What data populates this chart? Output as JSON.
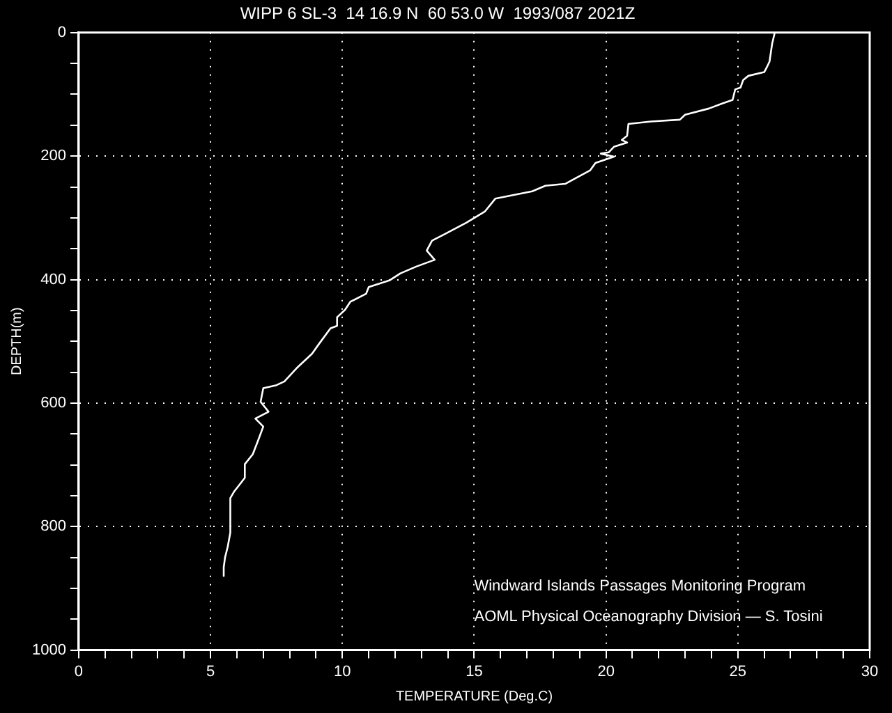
{
  "chart_data": {
    "type": "line",
    "title": "WIPP 6 SL-3  14 16.9 N  60 53.0 W  1993/087 2021Z",
    "xlabel": "TEMPERATURE (Deg.C)",
    "ylabel": "DEPTH(m)",
    "annotations": [
      "Windward Islands Passages Monitoring Program",
      "AOML Physical Oceanography Division — S. Tosini"
    ],
    "xlim": [
      0,
      30
    ],
    "ylim": [
      1000,
      0
    ],
    "xticks": [
      0,
      {
        "value": 1,
        "label": null
      },
      {
        "value": 2,
        "label": null
      },
      {
        "value": 3,
        "label": null
      },
      {
        "value": 4,
        "label": null
      },
      5,
      {
        "value": 6,
        "label": null
      },
      {
        "value": 7,
        "label": null
      },
      {
        "value": 8,
        "label": null
      },
      {
        "value": 9,
        "label": null
      },
      10,
      {
        "value": 11,
        "label": null
      },
      {
        "value": 12,
        "label": null
      },
      {
        "value": 13,
        "label": null
      },
      {
        "value": 14,
        "label": null
      },
      15,
      {
        "value": 16,
        "label": null
      },
      {
        "value": 17,
        "label": null
      },
      {
        "value": 18,
        "label": null
      },
      {
        "value": 19,
        "label": null
      },
      20,
      {
        "value": 21,
        "label": null
      },
      {
        "value": 22,
        "label": null
      },
      {
        "value": 23,
        "label": null
      },
      {
        "value": 24,
        "label": null
      },
      25,
      {
        "value": 26,
        "label": null
      },
      {
        "value": 27,
        "label": null
      },
      {
        "value": 28,
        "label": null
      },
      {
        "value": 29,
        "label": null
      },
      30
    ],
    "yticks": [
      0,
      {
        "value": 50,
        "label": null
      },
      {
        "value": 100,
        "label": null
      },
      {
        "value": 150,
        "label": null
      },
      200,
      {
        "value": 250,
        "label": null
      },
      {
        "value": 300,
        "label": null
      },
      {
        "value": 350,
        "label": null
      },
      400,
      {
        "value": 450,
        "label": null
      },
      {
        "value": 500,
        "label": null
      },
      {
        "value": 550,
        "label": null
      },
      600,
      {
        "value": 650,
        "label": null
      },
      {
        "value": 700,
        "label": null
      },
      {
        "value": 750,
        "label": null
      },
      800,
      {
        "value": 850,
        "label": null
      },
      {
        "value": 900,
        "label": null
      },
      {
        "value": 950,
        "label": null
      },
      1000
    ],
    "grid": true,
    "legend": false,
    "marker": "none",
    "line_style": "solid",
    "series": [
      {
        "color": "#ffffff",
        "x": [
          26.4,
          26.3,
          26.2,
          26.1,
          26.0,
          25.4,
          25.2,
          25.1,
          24.9,
          24.8,
          24.4,
          23.9,
          23.0,
          22.8,
          21.7,
          20.85,
          20.8,
          20.6,
          20.8,
          20.3,
          20.1,
          19.8,
          20.3,
          19.6,
          19.4,
          18.45,
          17.7,
          17.2,
          15.8,
          15.4,
          14.7,
          13.9,
          13.4,
          13.2,
          13.5,
          12.8,
          12.2,
          11.8,
          11.0,
          10.9,
          10.3,
          10.1,
          9.8,
          9.8,
          9.55,
          9.1,
          8.85,
          8.3,
          7.8,
          7.5,
          7.0,
          6.9,
          7.2,
          6.7,
          7.0,
          6.8,
          6.6,
          6.3,
          6.3,
          5.9,
          5.75,
          5.75,
          5.65,
          5.55,
          5.5,
          5.5
        ],
        "values": [
          0,
          18,
          47,
          56,
          64,
          70,
          77,
          89,
          92,
          109,
          115,
          123,
          133,
          141,
          144,
          148,
          167,
          174,
          178,
          185,
          194,
          196,
          201,
          211,
          223,
          245,
          248,
          257,
          269,
          290,
          308,
          326,
          337,
          353,
          368,
          379,
          390,
          401,
          412,
          423,
          436,
          449,
          461,
          475,
          479,
          505,
          520,
          542,
          565,
          571,
          576,
          598,
          614,
          625,
          638,
          661,
          683,
          699,
          721,
          743,
          754,
          810,
          833,
          850,
          866,
          880
        ]
      }
    ]
  }
}
